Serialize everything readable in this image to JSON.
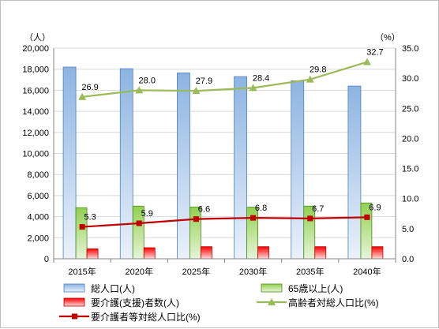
{
  "chart_data": {
    "type": "bar",
    "categories": [
      "2015年",
      "2020年",
      "2025年",
      "2030年",
      "2035年",
      "2040年"
    ],
    "left_axis": {
      "unit_label": "（人）",
      "ylim": [
        0,
        20000
      ],
      "ticks": [
        "0",
        "2,000",
        "4,000",
        "6,000",
        "8,000",
        "10,000",
        "12,000",
        "14,000",
        "16,000",
        "18,000",
        "20,000"
      ]
    },
    "right_axis": {
      "unit_label": "（%）",
      "ylim": [
        0,
        35
      ],
      "ticks": [
        "0.0",
        "5.0",
        "10.0",
        "15.0",
        "20.0",
        "25.0",
        "30.0",
        "35.0"
      ]
    },
    "bar_series": [
      {
        "name": "総人口(人)",
        "values": [
          18200,
          18050,
          17650,
          17300,
          16900,
          16400
        ],
        "color": "#8db4e2"
      },
      {
        "name": "65歳以上(人)",
        "values": [
          4850,
          5000,
          4920,
          4900,
          5000,
          5300
        ],
        "color": "#92d050"
      },
      {
        "name": "要介護(支援)者数(人)",
        "values": [
          950,
          1050,
          1150,
          1150,
          1150,
          1150
        ],
        "color": "#ff0000"
      }
    ],
    "line_series": [
      {
        "name": "高齢者対総人口比(%)",
        "values": [
          26.9,
          28.0,
          27.9,
          28.4,
          29.8,
          32.7
        ],
        "labels": [
          "26.9",
          "28.0",
          "27.9",
          "28.4",
          "29.8",
          "32.7"
        ],
        "color": "#9bbb59",
        "marker": "triangle"
      },
      {
        "name": "要介護者等対総人口比(%)",
        "values": [
          5.3,
          5.9,
          6.6,
          6.8,
          6.7,
          6.9
        ],
        "labels": [
          "5.3",
          "5.9",
          "6.6",
          "6.8",
          "6.7",
          "6.9"
        ],
        "color": "#c00000",
        "marker": "square"
      }
    ],
    "legend": [
      {
        "label": "総人口(人)",
        "kind": "bar",
        "color": "#8db4e2"
      },
      {
        "label": "65歳以上(人)",
        "kind": "bar",
        "color": "#92d050"
      },
      {
        "label": "要介護(支援)者数(人)",
        "kind": "bar",
        "color": "#ff0000"
      },
      {
        "label": "高齢者対総人口比(%)",
        "kind": "line-triangle",
        "color": "#9bbb59"
      },
      {
        "label": "要介護者等対総人口比(%)",
        "kind": "line-square",
        "color": "#c00000"
      }
    ],
    "legend_position": "bottom",
    "grid": "horizontal"
  }
}
